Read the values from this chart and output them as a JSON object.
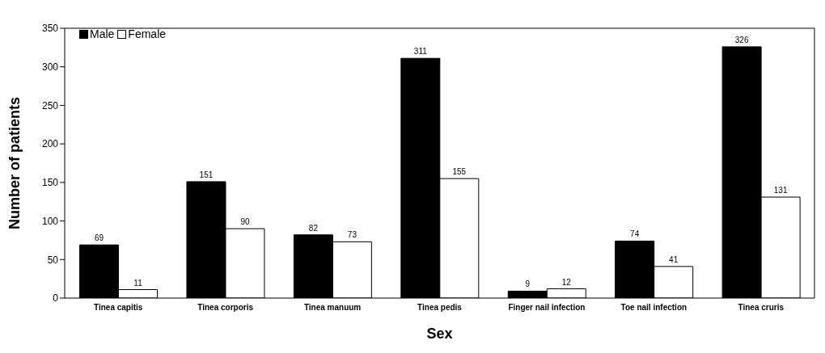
{
  "chart_data": {
    "type": "bar",
    "xlabel": "Sex",
    "ylabel": "Number of patients",
    "categories": [
      "Tinea capitis",
      "Tinea corporis",
      "Tinea manuum",
      "Tinea pedis",
      "Finger nail infection",
      "Toe nail infection",
      "Tinea cruris"
    ],
    "series": [
      {
        "name": "Male",
        "color": "#000000",
        "values": [
          69,
          151,
          82,
          311,
          9,
          74,
          326
        ]
      },
      {
        "name": "Female",
        "color": "#ffffff",
        "values": [
          11,
          90,
          73,
          155,
          12,
          41,
          131
        ]
      }
    ],
    "ylim": [
      0,
      350
    ],
    "yticks": [
      0,
      50,
      100,
      150,
      200,
      250,
      300,
      350
    ],
    "data_labels": true,
    "legend": "top left",
    "grid": false
  }
}
